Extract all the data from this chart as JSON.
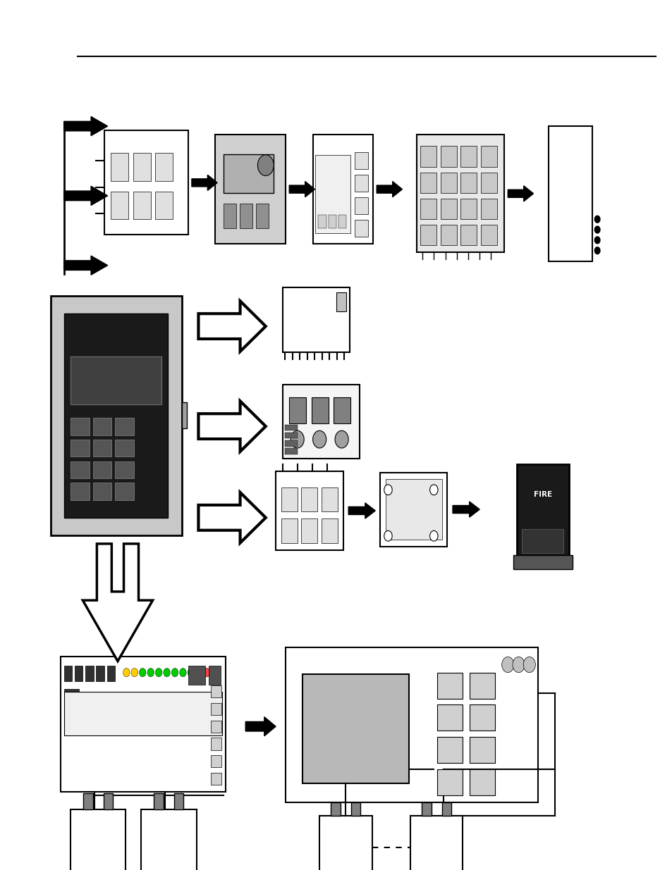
{
  "background_color": "#ffffff",
  "line_color": "#000000",
  "fig_width": 9.54,
  "fig_height": 12.35
}
